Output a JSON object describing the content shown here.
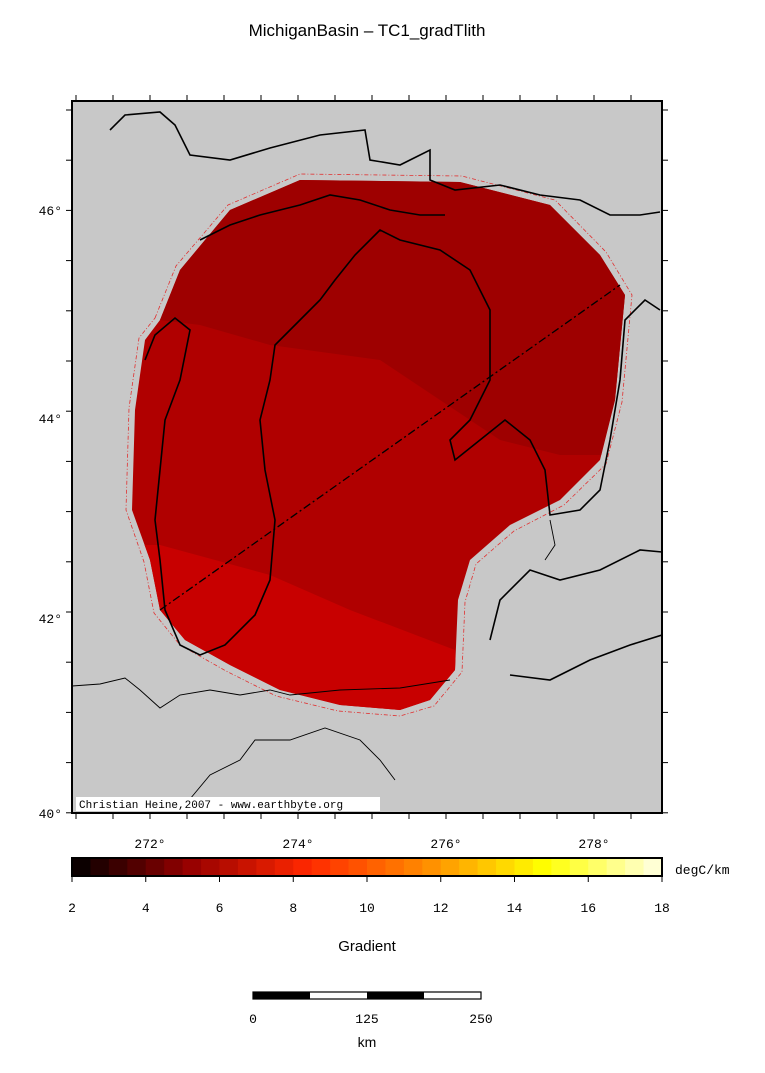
{
  "header": {
    "title": "MichiganBasin – TC1_gradTlith"
  },
  "map": {
    "lat_labels": [
      "46°",
      "44°",
      "42°",
      "40°"
    ],
    "lon_labels": [
      "272°",
      "274°",
      "276°",
      "278°"
    ],
    "credit": "Christian Heine,2007 - www.earthbyte.org"
  },
  "colorbar": {
    "ticks": [
      "2",
      "4",
      "6",
      "8",
      "10",
      "12",
      "14",
      "16",
      "18"
    ],
    "unit": "degC/km",
    "label": "Gradient"
  },
  "scalebar": {
    "ticks": [
      "0",
      "125",
      "250"
    ],
    "unit": "km"
  }
}
